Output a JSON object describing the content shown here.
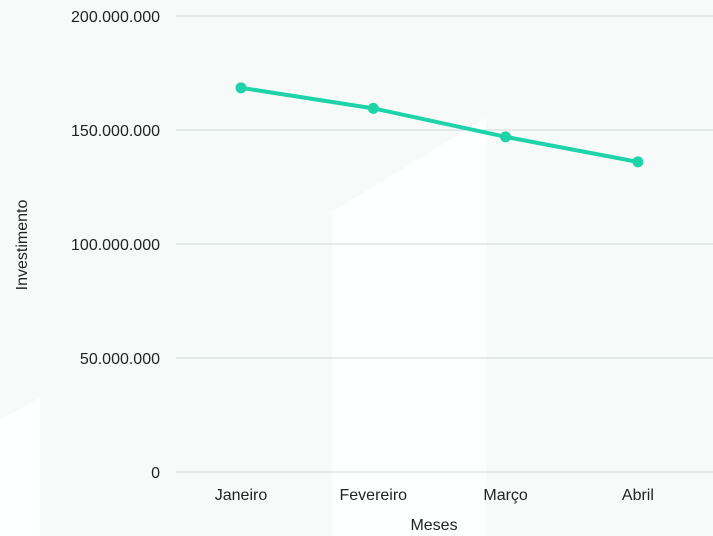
{
  "chart_data": {
    "type": "line",
    "xlabel": "Meses",
    "ylabel": "Investimento",
    "categories": [
      "Janeiro",
      "Fevereiro",
      "Março",
      "Abril"
    ],
    "series": [
      {
        "values": [
          168500000,
          159500000,
          147000000,
          136000000
        ]
      }
    ],
    "ylim": [
      0,
      200000000
    ],
    "y_ticks": [
      0,
      50000000,
      100000000,
      150000000,
      200000000
    ],
    "y_tick_labels": [
      "0",
      "50.000.000",
      "100.000.000",
      "150.000.000",
      "200.000.000"
    ],
    "grid": true,
    "line_color": "#1fd3a8",
    "background_tint": "#eef8f6"
  }
}
